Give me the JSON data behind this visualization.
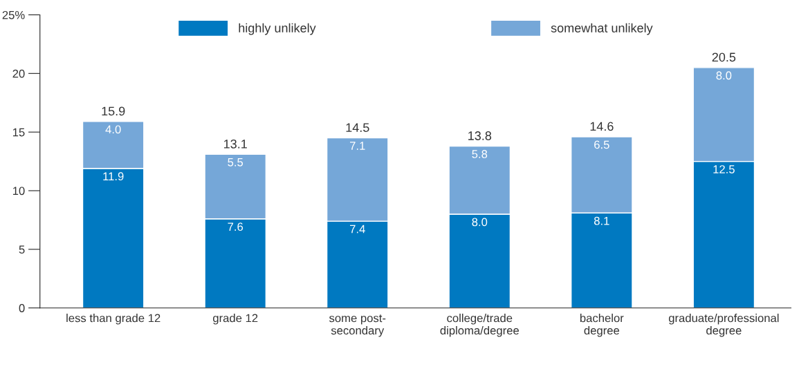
{
  "chart_data": {
    "type": "bar",
    "stacked": true,
    "categories": [
      "less than grade 12",
      "grade 12",
      "some post-\nsecondary",
      "college/trade\ndiploma/degree",
      "bachelor\ndegree",
      "graduate/professional\ndegree"
    ],
    "series": [
      {
        "name": "highly unlikely",
        "color": "#0079c1",
        "values": [
          11.9,
          7.6,
          7.4,
          8.0,
          8.1,
          12.5
        ],
        "value_labels": [
          "11.9",
          "7.6",
          "7.4",
          "8.0",
          "8.1",
          "12.5"
        ]
      },
      {
        "name": "somewhat unlikely",
        "color": "#75a7d8",
        "values": [
          4.0,
          5.5,
          7.1,
          5.8,
          6.5,
          8.0
        ],
        "value_labels": [
          "4.0",
          "5.5",
          "7.1",
          "5.8",
          "6.5",
          "8.0"
        ]
      }
    ],
    "totals": [
      "15.9",
      "13.1",
      "14.5",
      "13.8",
      "14.6",
      "20.5"
    ],
    "ylim": [
      0,
      25
    ],
    "yticks": [
      0,
      5,
      10,
      15,
      20,
      {
        "value": 25,
        "label": "25%"
      }
    ],
    "grid": false,
    "legend": "top"
  }
}
